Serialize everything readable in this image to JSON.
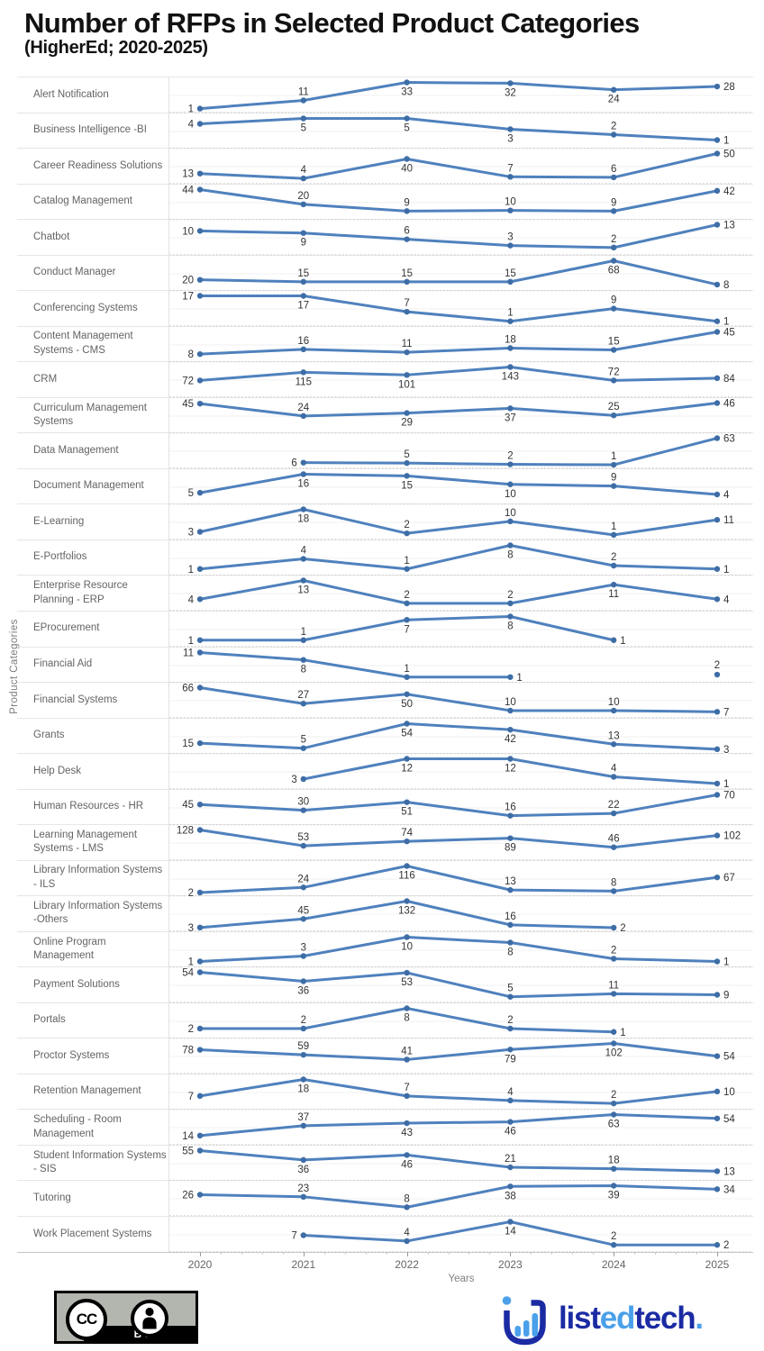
{
  "chart_data": {
    "type": "line",
    "title": "Number of RFPs in Selected Product Categories",
    "subtitle": "(HigherEd; 2020-2025)",
    "xlabel": "Years",
    "ylabel": "Product Categories",
    "x": [
      2020,
      2021,
      2022,
      2023,
      2024,
      2025
    ],
    "x_tick_labels": [
      "2020",
      "2021",
      "2022",
      "2023",
      "2024",
      "2025"
    ],
    "line_color": "#4f81bd",
    "point_color": "#3e6da6",
    "legend": "none",
    "layout": "small-multiples, one row per category, independent y-scale per row, dotted zero baseline per row",
    "series": [
      {
        "name": "Alert Notification",
        "values": [
          1,
          11,
          33,
          32,
          24,
          28
        ]
      },
      {
        "name": "Business Intelligence -BI",
        "values": [
          4,
          5,
          5,
          3,
          2,
          1
        ]
      },
      {
        "name": "Career Readiness Solutions",
        "values": [
          13,
          4,
          40,
          7,
          6,
          50
        ]
      },
      {
        "name": "Catalog Management",
        "values": [
          44,
          20,
          9,
          10,
          9,
          42
        ]
      },
      {
        "name": "Chatbot",
        "values": [
          10,
          9,
          6,
          3,
          2,
          13
        ]
      },
      {
        "name": "Conduct Manager",
        "values": [
          20,
          15,
          15,
          15,
          68,
          8
        ]
      },
      {
        "name": "Conferencing Systems",
        "values": [
          17,
          17,
          7,
          1,
          9,
          1
        ]
      },
      {
        "name": "Content Management Systems - CMS",
        "values": [
          8,
          16,
          11,
          18,
          15,
          45
        ]
      },
      {
        "name": "CRM",
        "values": [
          72,
          115,
          101,
          143,
          72,
          84
        ]
      },
      {
        "name": "Curriculum Management Systems",
        "values": [
          45,
          24,
          29,
          37,
          25,
          46
        ]
      },
      {
        "name": "Data Management",
        "values": [
          null,
          6,
          5,
          2,
          1,
          63
        ]
      },
      {
        "name": "Document Management",
        "values": [
          5,
          16,
          15,
          10,
          9,
          4
        ]
      },
      {
        "name": "E-Learning",
        "values": [
          3,
          18,
          2,
          10,
          1,
          11
        ]
      },
      {
        "name": "E-Portfolios",
        "values": [
          1,
          4,
          1,
          8,
          2,
          1
        ]
      },
      {
        "name": "Enterprise Resource Planning - ERP",
        "values": [
          4,
          13,
          2,
          2,
          11,
          4
        ]
      },
      {
        "name": "EProcurement",
        "values": [
          1,
          1,
          7,
          8,
          1,
          null
        ]
      },
      {
        "name": "Financial Aid",
        "values": [
          11,
          8,
          1,
          1,
          null,
          2
        ]
      },
      {
        "name": "Financial Systems",
        "values": [
          66,
          27,
          50,
          10,
          10,
          7
        ]
      },
      {
        "name": "Grants",
        "values": [
          15,
          5,
          54,
          42,
          13,
          3
        ]
      },
      {
        "name": "Help Desk",
        "values": [
          null,
          3,
          12,
          12,
          4,
          1
        ]
      },
      {
        "name": "Human Resources - HR",
        "values": [
          45,
          30,
          51,
          16,
          22,
          70
        ]
      },
      {
        "name": "Learning Management Systems - LMS",
        "values": [
          128,
          53,
          74,
          89,
          46,
          102
        ]
      },
      {
        "name": "Library Information Systems - ILS",
        "values": [
          2,
          24,
          116,
          13,
          8,
          67
        ]
      },
      {
        "name": "Library Information Systems -Others",
        "values": [
          3,
          45,
          132,
          16,
          2,
          null
        ]
      },
      {
        "name": "Online Program Management",
        "values": [
          1,
          3,
          10,
          8,
          2,
          1
        ]
      },
      {
        "name": "Payment Solutions",
        "values": [
          54,
          36,
          53,
          5,
          11,
          9
        ]
      },
      {
        "name": "Portals",
        "values": [
          2,
          2,
          8,
          2,
          1,
          null
        ]
      },
      {
        "name": "Proctor Systems",
        "values": [
          78,
          59,
          41,
          79,
          102,
          54
        ]
      },
      {
        "name": "Retention Management",
        "values": [
          7,
          18,
          7,
          4,
          2,
          10
        ]
      },
      {
        "name": "Scheduling - Room Management",
        "values": [
          14,
          37,
          43,
          46,
          63,
          54
        ]
      },
      {
        "name": "Student Information Systems - SIS",
        "values": [
          55,
          36,
          46,
          21,
          18,
          13
        ]
      },
      {
        "name": "Tutoring",
        "values": [
          26,
          23,
          8,
          38,
          39,
          34
        ]
      },
      {
        "name": "Work Placement Systems",
        "values": [
          null,
          7,
          4,
          14,
          2,
          2
        ]
      }
    ]
  },
  "footer": {
    "license": {
      "cc_label": "CC",
      "by_label": "BY"
    },
    "brand": {
      "dark_color": "#1b2ba3",
      "light_color": "#4aa0ea",
      "parts": [
        {
          "text": "list",
          "color": "#1b2ba3"
        },
        {
          "text": "ed",
          "color": "#4aa0ea"
        },
        {
          "text": "tech",
          "color": "#1b2ba3"
        },
        {
          "text": ".",
          "color": "#4aa0ea"
        }
      ]
    }
  }
}
